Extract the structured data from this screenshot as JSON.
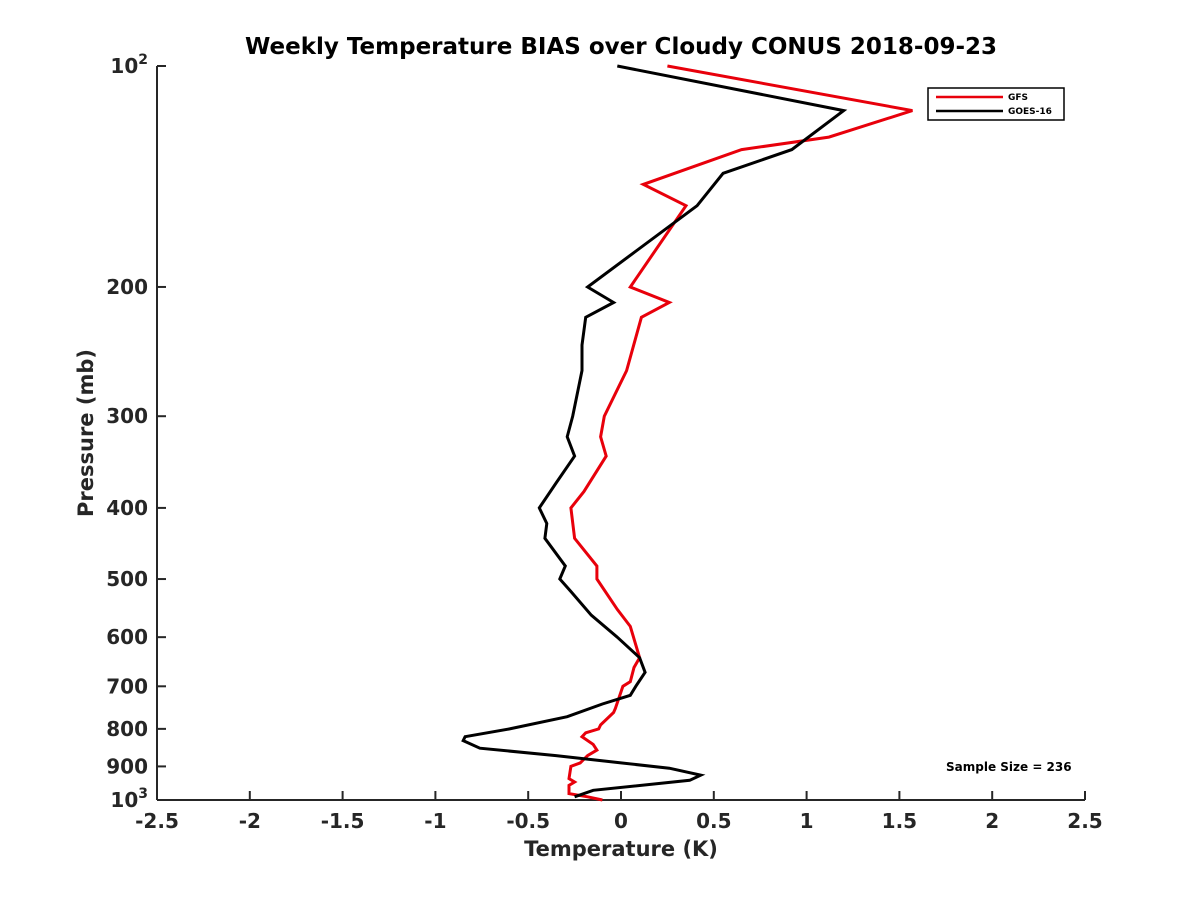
{
  "chart_data": {
    "type": "line",
    "title": "Weekly Temperature BIAS over Cloudy CONUS 2018-09-23",
    "xlabel": "Temperature (K)",
    "ylabel": "Pressure (mb)",
    "xlim": [
      -2.5,
      2.5
    ],
    "ylim": [
      100,
      1000
    ],
    "y_scale": "log",
    "y_reversed": true,
    "grid": false,
    "x_ticks": [
      "-2.5",
      "-2",
      "-1.5",
      "-1",
      "-0.5",
      "0",
      "0.5",
      "1",
      "1.5",
      "2",
      "2.5"
    ],
    "x_tick_values": [
      -2.5,
      -2,
      -1.5,
      -1,
      -0.5,
      0,
      0.5,
      1,
      1.5,
      2,
      2.5
    ],
    "y_ticks": [
      {
        "base": "10",
        "exp": "2",
        "value": 100
      },
      {
        "label": "200",
        "value": 200
      },
      {
        "label": "300",
        "value": 300
      },
      {
        "label": "400",
        "value": 400
      },
      {
        "label": "500",
        "value": 500
      },
      {
        "label": "600",
        "value": 600
      },
      {
        "label": "700",
        "value": 700
      },
      {
        "label": "800",
        "value": 800
      },
      {
        "label": "900",
        "value": 900
      },
      {
        "base": "10",
        "exp": "3",
        "value": 1000
      }
    ],
    "legend_position": "top-right",
    "annotation": "Sample Size = 236",
    "series": [
      {
        "name": "GFS",
        "color": "#e8000b",
        "points": [
          [
            0.25,
            100
          ],
          [
            1.57,
            115
          ],
          [
            1.12,
            125
          ],
          [
            0.65,
            130
          ],
          [
            0.12,
            145
          ],
          [
            0.35,
            155
          ],
          [
            0.05,
            200
          ],
          [
            0.26,
            210
          ],
          [
            0.11,
            220
          ],
          [
            0.03,
            260
          ],
          [
            -0.09,
            300
          ],
          [
            -0.11,
            320
          ],
          [
            -0.08,
            340
          ],
          [
            -0.2,
            380
          ],
          [
            -0.27,
            400
          ],
          [
            -0.25,
            440
          ],
          [
            -0.13,
            480
          ],
          [
            -0.13,
            500
          ],
          [
            -0.02,
            550
          ],
          [
            0.05,
            580
          ],
          [
            0.1,
            640
          ],
          [
            0.07,
            660
          ],
          [
            0.05,
            690
          ],
          [
            0.01,
            700
          ],
          [
            -0.03,
            750
          ],
          [
            -0.04,
            760
          ],
          [
            -0.11,
            790
          ],
          [
            -0.12,
            800
          ],
          [
            -0.19,
            810
          ],
          [
            -0.21,
            820
          ],
          [
            -0.15,
            840
          ],
          [
            -0.13,
            855
          ],
          [
            -0.18,
            870
          ],
          [
            -0.22,
            890
          ],
          [
            -0.27,
            900
          ],
          [
            -0.28,
            935
          ],
          [
            -0.25,
            945
          ],
          [
            -0.28,
            955
          ],
          [
            -0.28,
            980
          ],
          [
            -0.18,
            990
          ],
          [
            -0.1,
            1000
          ]
        ]
      },
      {
        "name": "GOES-16",
        "color": "#000000",
        "points": [
          [
            -0.02,
            100
          ],
          [
            1.2,
            115
          ],
          [
            0.92,
            130
          ],
          [
            0.55,
            140
          ],
          [
            0.41,
            155
          ],
          [
            -0.18,
            200
          ],
          [
            -0.04,
            210
          ],
          [
            -0.19,
            220
          ],
          [
            -0.21,
            240
          ],
          [
            -0.21,
            260
          ],
          [
            -0.26,
            300
          ],
          [
            -0.29,
            320
          ],
          [
            -0.25,
            340
          ],
          [
            -0.35,
            370
          ],
          [
            -0.44,
            400
          ],
          [
            -0.4,
            420
          ],
          [
            -0.41,
            440
          ],
          [
            -0.3,
            480
          ],
          [
            -0.33,
            500
          ],
          [
            -0.27,
            520
          ],
          [
            -0.16,
            560
          ],
          [
            -0.02,
            600
          ],
          [
            0.1,
            640
          ],
          [
            0.13,
            670
          ],
          [
            0.08,
            700
          ],
          [
            0.05,
            720
          ],
          [
            -0.1,
            740
          ],
          [
            -0.29,
            770
          ],
          [
            -0.6,
            800
          ],
          [
            -0.84,
            820
          ],
          [
            -0.85,
            830
          ],
          [
            -0.76,
            850
          ],
          [
            -0.35,
            870
          ],
          [
            0.0,
            890
          ],
          [
            0.26,
            905
          ],
          [
            0.43,
            925
          ],
          [
            0.37,
            940
          ],
          [
            -0.15,
            970
          ],
          [
            -0.25,
            990
          ]
        ]
      }
    ]
  }
}
